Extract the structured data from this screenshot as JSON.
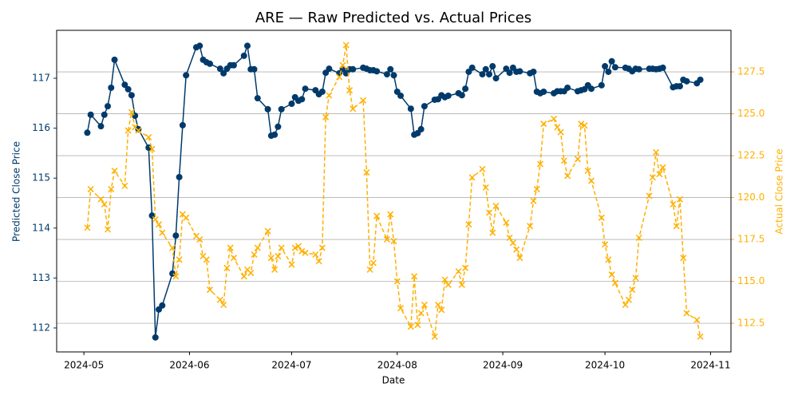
{
  "chart_data": {
    "type": "line",
    "title": "ARE — Raw Predicted vs. Actual Prices",
    "x_label": "Date",
    "y_label": "Predicted Close Price",
    "y2_label": "Actual Close Price",
    "grid": "y2",
    "xlim": [
      "2024-04-23",
      "2024-11-07"
    ],
    "xticks": [
      "2024-05",
      "2024-06",
      "2024-07",
      "2024-08",
      "2024-09",
      "2024-10",
      "2024-11"
    ],
    "ylim": [
      111.52,
      117.96
    ],
    "yticks": [
      112,
      113,
      114,
      115,
      116,
      117
    ],
    "y2lim": [
      110.79,
      129.98
    ],
    "y2ticks": [
      112.5,
      {
        "value": 115,
        "label": "115.0"
      },
      117.5,
      {
        "value": 120,
        "label": "120.0"
      },
      122.5,
      {
        "value": 125,
        "label": "125.0"
      },
      127.5
    ],
    "x": [
      "2024-05-02",
      "2024-05-03",
      "2024-05-06",
      "2024-05-07",
      "2024-05-08",
      "2024-05-09",
      "2024-05-10",
      "2024-05-13",
      "2024-05-14",
      "2024-05-15",
      "2024-05-16",
      "2024-05-17",
      "2024-05-20",
      "2024-05-21",
      "2024-05-22",
      "2024-05-23",
      "2024-05-24",
      "2024-05-27",
      "2024-05-28",
      "2024-05-29",
      "2024-05-30",
      "2024-05-31",
      "2024-06-03",
      "2024-06-04",
      "2024-06-05",
      "2024-06-06",
      "2024-06-07",
      "2024-06-10",
      "2024-06-11",
      "2024-06-12",
      "2024-06-13",
      "2024-06-14",
      "2024-06-17",
      "2024-06-18",
      "2024-06-19",
      "2024-06-20",
      "2024-06-21",
      "2024-06-24",
      "2024-06-25",
      "2024-06-26",
      "2024-06-27",
      "2024-06-28",
      "2024-07-01",
      "2024-07-02",
      "2024-07-03",
      "2024-07-04",
      "2024-07-05",
      "2024-07-08",
      "2024-07-09",
      "2024-07-10",
      "2024-07-11",
      "2024-07-12",
      "2024-07-15",
      "2024-07-16",
      "2024-07-17",
      "2024-07-18",
      "2024-07-19",
      "2024-07-22",
      "2024-07-23",
      "2024-07-24",
      "2024-07-25",
      "2024-07-26",
      "2024-07-29",
      "2024-07-30",
      "2024-07-31",
      "2024-08-01",
      "2024-08-02",
      "2024-08-05",
      "2024-08-06",
      "2024-08-07",
      "2024-08-08",
      "2024-08-09",
      "2024-08-12",
      "2024-08-13",
      "2024-08-14",
      "2024-08-15",
      "2024-08-16",
      "2024-08-19",
      "2024-08-20",
      "2024-08-21",
      "2024-08-22",
      "2024-08-23",
      "2024-08-26",
      "2024-08-27",
      "2024-08-28",
      "2024-08-29",
      "2024-08-30",
      "2024-09-02",
      "2024-09-03",
      "2024-09-04",
      "2024-09-05",
      "2024-09-06",
      "2024-09-09",
      "2024-09-10",
      "2024-09-11",
      "2024-09-12",
      "2024-09-13",
      "2024-09-16",
      "2024-09-17",
      "2024-09-18",
      "2024-09-19",
      "2024-09-20",
      "2024-09-23",
      "2024-09-24",
      "2024-09-25",
      "2024-09-26",
      "2024-09-27",
      "2024-09-30",
      "2024-10-01",
      "2024-10-02",
      "2024-10-03",
      "2024-10-04",
      "2024-10-07",
      "2024-10-08",
      "2024-10-09",
      "2024-10-10",
      "2024-10-11",
      "2024-10-14",
      "2024-10-15",
      "2024-10-16",
      "2024-10-17",
      "2024-10-18",
      "2024-10-21",
      "2024-10-22",
      "2024-10-23",
      "2024-10-24",
      "2024-10-25",
      "2024-10-28",
      "2024-10-29"
    ],
    "series": [
      {
        "color": "#003a6b",
        "axis": "y",
        "marker": "circle",
        "line": "solid",
        "values": [
          115.91,
          116.27,
          116.04,
          116.27,
          116.44,
          116.81,
          117.37,
          116.87,
          116.78,
          116.66,
          116.25,
          115.98,
          115.61,
          114.25,
          111.81,
          112.37,
          112.45,
          113.09,
          113.85,
          115.02,
          116.06,
          117.06,
          117.62,
          117.65,
          117.37,
          117.32,
          117.29,
          117.19,
          117.1,
          117.19,
          117.26,
          117.26,
          117.45,
          117.65,
          117.18,
          117.18,
          116.6,
          116.38,
          115.85,
          115.87,
          116.03,
          116.38,
          116.49,
          116.62,
          116.55,
          116.58,
          116.79,
          116.76,
          116.68,
          116.73,
          117.11,
          117.19,
          117.1,
          117.19,
          117.1,
          117.18,
          117.18,
          117.21,
          117.19,
          117.16,
          117.16,
          117.14,
          117.08,
          117.18,
          117.06,
          116.73,
          116.65,
          116.39,
          115.87,
          115.9,
          115.98,
          116.44,
          116.57,
          116.58,
          116.66,
          116.62,
          116.65,
          116.7,
          116.66,
          116.79,
          117.13,
          117.21,
          117.08,
          117.18,
          117.08,
          117.24,
          117.0,
          117.19,
          117.11,
          117.21,
          117.13,
          117.14,
          117.1,
          117.13,
          116.73,
          116.7,
          116.73,
          116.7,
          116.74,
          116.74,
          116.74,
          116.81,
          116.74,
          116.76,
          116.78,
          116.86,
          116.79,
          116.86,
          117.24,
          117.13,
          117.34,
          117.22,
          117.21,
          117.19,
          117.14,
          117.19,
          117.18,
          117.19,
          117.19,
          117.18,
          117.19,
          117.21,
          116.82,
          116.84,
          116.84,
          116.97,
          116.94,
          116.9,
          116.97
        ]
      },
      {
        "color": "#ffb000",
        "axis": "y2",
        "marker": "x",
        "line": "dashed",
        "values": [
          118.2,
          120.5,
          119.9,
          119.6,
          118.1,
          120.5,
          121.6,
          120.7,
          124.0,
          125.1,
          124.2,
          124.0,
          123.6,
          122.9,
          118.7,
          118.4,
          117.9,
          117.0,
          115.3,
          116.3,
          119.0,
          118.8,
          117.7,
          117.5,
          116.5,
          116.3,
          114.5,
          113.9,
          113.6,
          115.8,
          117.0,
          116.4,
          115.3,
          115.7,
          115.5,
          116.6,
          117.0,
          118.0,
          116.4,
          115.7,
          116.5,
          117.0,
          116.0,
          117.0,
          117.1,
          116.8,
          116.7,
          116.6,
          116.2,
          117.0,
          124.8,
          126.1,
          127.2,
          127.9,
          129.1,
          126.4,
          125.3,
          125.8,
          121.5,
          115.7,
          116.1,
          118.9,
          117.5,
          119.0,
          117.4,
          115.0,
          113.4,
          112.3,
          115.3,
          112.4,
          113.1,
          113.6,
          111.7,
          113.6,
          113.3,
          115.1,
          114.8,
          115.6,
          114.8,
          115.8,
          118.4,
          121.2,
          121.7,
          120.6,
          119.1,
          117.9,
          119.5,
          118.5,
          117.6,
          117.3,
          116.9,
          116.4,
          118.3,
          119.8,
          120.5,
          122.0,
          124.4,
          124.7,
          124.2,
          123.9,
          122.2,
          121.3,
          122.3,
          124.4,
          124.3,
          121.6,
          121.0,
          118.8,
          117.2,
          116.3,
          115.4,
          114.9,
          113.6,
          113.9,
          114.5,
          115.2,
          117.6,
          120.1,
          121.2,
          122.7,
          121.4,
          121.8,
          119.6,
          118.3,
          119.9,
          116.4,
          113.1,
          112.7,
          111.7
        ]
      }
    ]
  }
}
